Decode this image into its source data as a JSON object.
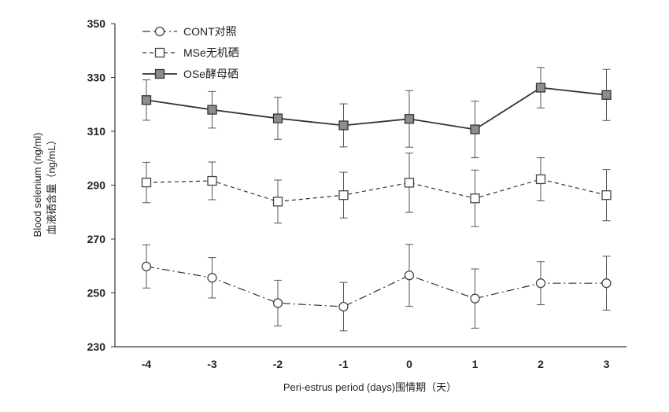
{
  "chart_data": {
    "type": "line",
    "xlabel": "Peri-estrus period (days)围情期（天）",
    "ylabel_en": "Blood selenium (ng/ml)",
    "ylabel_zh": "血液硒含量（ng/mL）",
    "x": [
      -4,
      -3,
      -2,
      -1,
      0,
      1,
      2,
      3
    ],
    "x_tick_labels": [
      "-4",
      "-3",
      "-2",
      "-1",
      "0",
      "1",
      "2",
      "3"
    ],
    "ylim": [
      230,
      350
    ],
    "y_ticks": [
      230,
      250,
      270,
      290,
      310,
      330,
      350
    ],
    "grid": false,
    "legend_position": "top-left",
    "series": [
      {
        "name": "CONT对照",
        "marker": "circle-open",
        "line_style": "dash-dot",
        "values": [
          259.8,
          255.6,
          246.2,
          244.9,
          256.5,
          247.9,
          253.6,
          253.6
        ],
        "error": [
          8,
          7.5,
          8.5,
          9,
          11.5,
          11,
          8,
          10
        ]
      },
      {
        "name": "MSe无机硒",
        "marker": "square-open",
        "line_style": "dashed",
        "values": [
          291,
          291.6,
          283.9,
          286.3,
          290.9,
          285.1,
          292.2,
          286.3
        ],
        "error": [
          7.5,
          7,
          8,
          8.5,
          11,
          10.5,
          8,
          9.5
        ]
      },
      {
        "name": "OSe酵母硒",
        "marker": "square-filled",
        "line_style": "solid",
        "values": [
          321.6,
          318,
          314.8,
          312.2,
          314.6,
          310.7,
          326.2,
          323.5
        ],
        "error": [
          7.5,
          6.8,
          7.8,
          8,
          10.5,
          10.5,
          7.5,
          9.5
        ]
      }
    ]
  }
}
